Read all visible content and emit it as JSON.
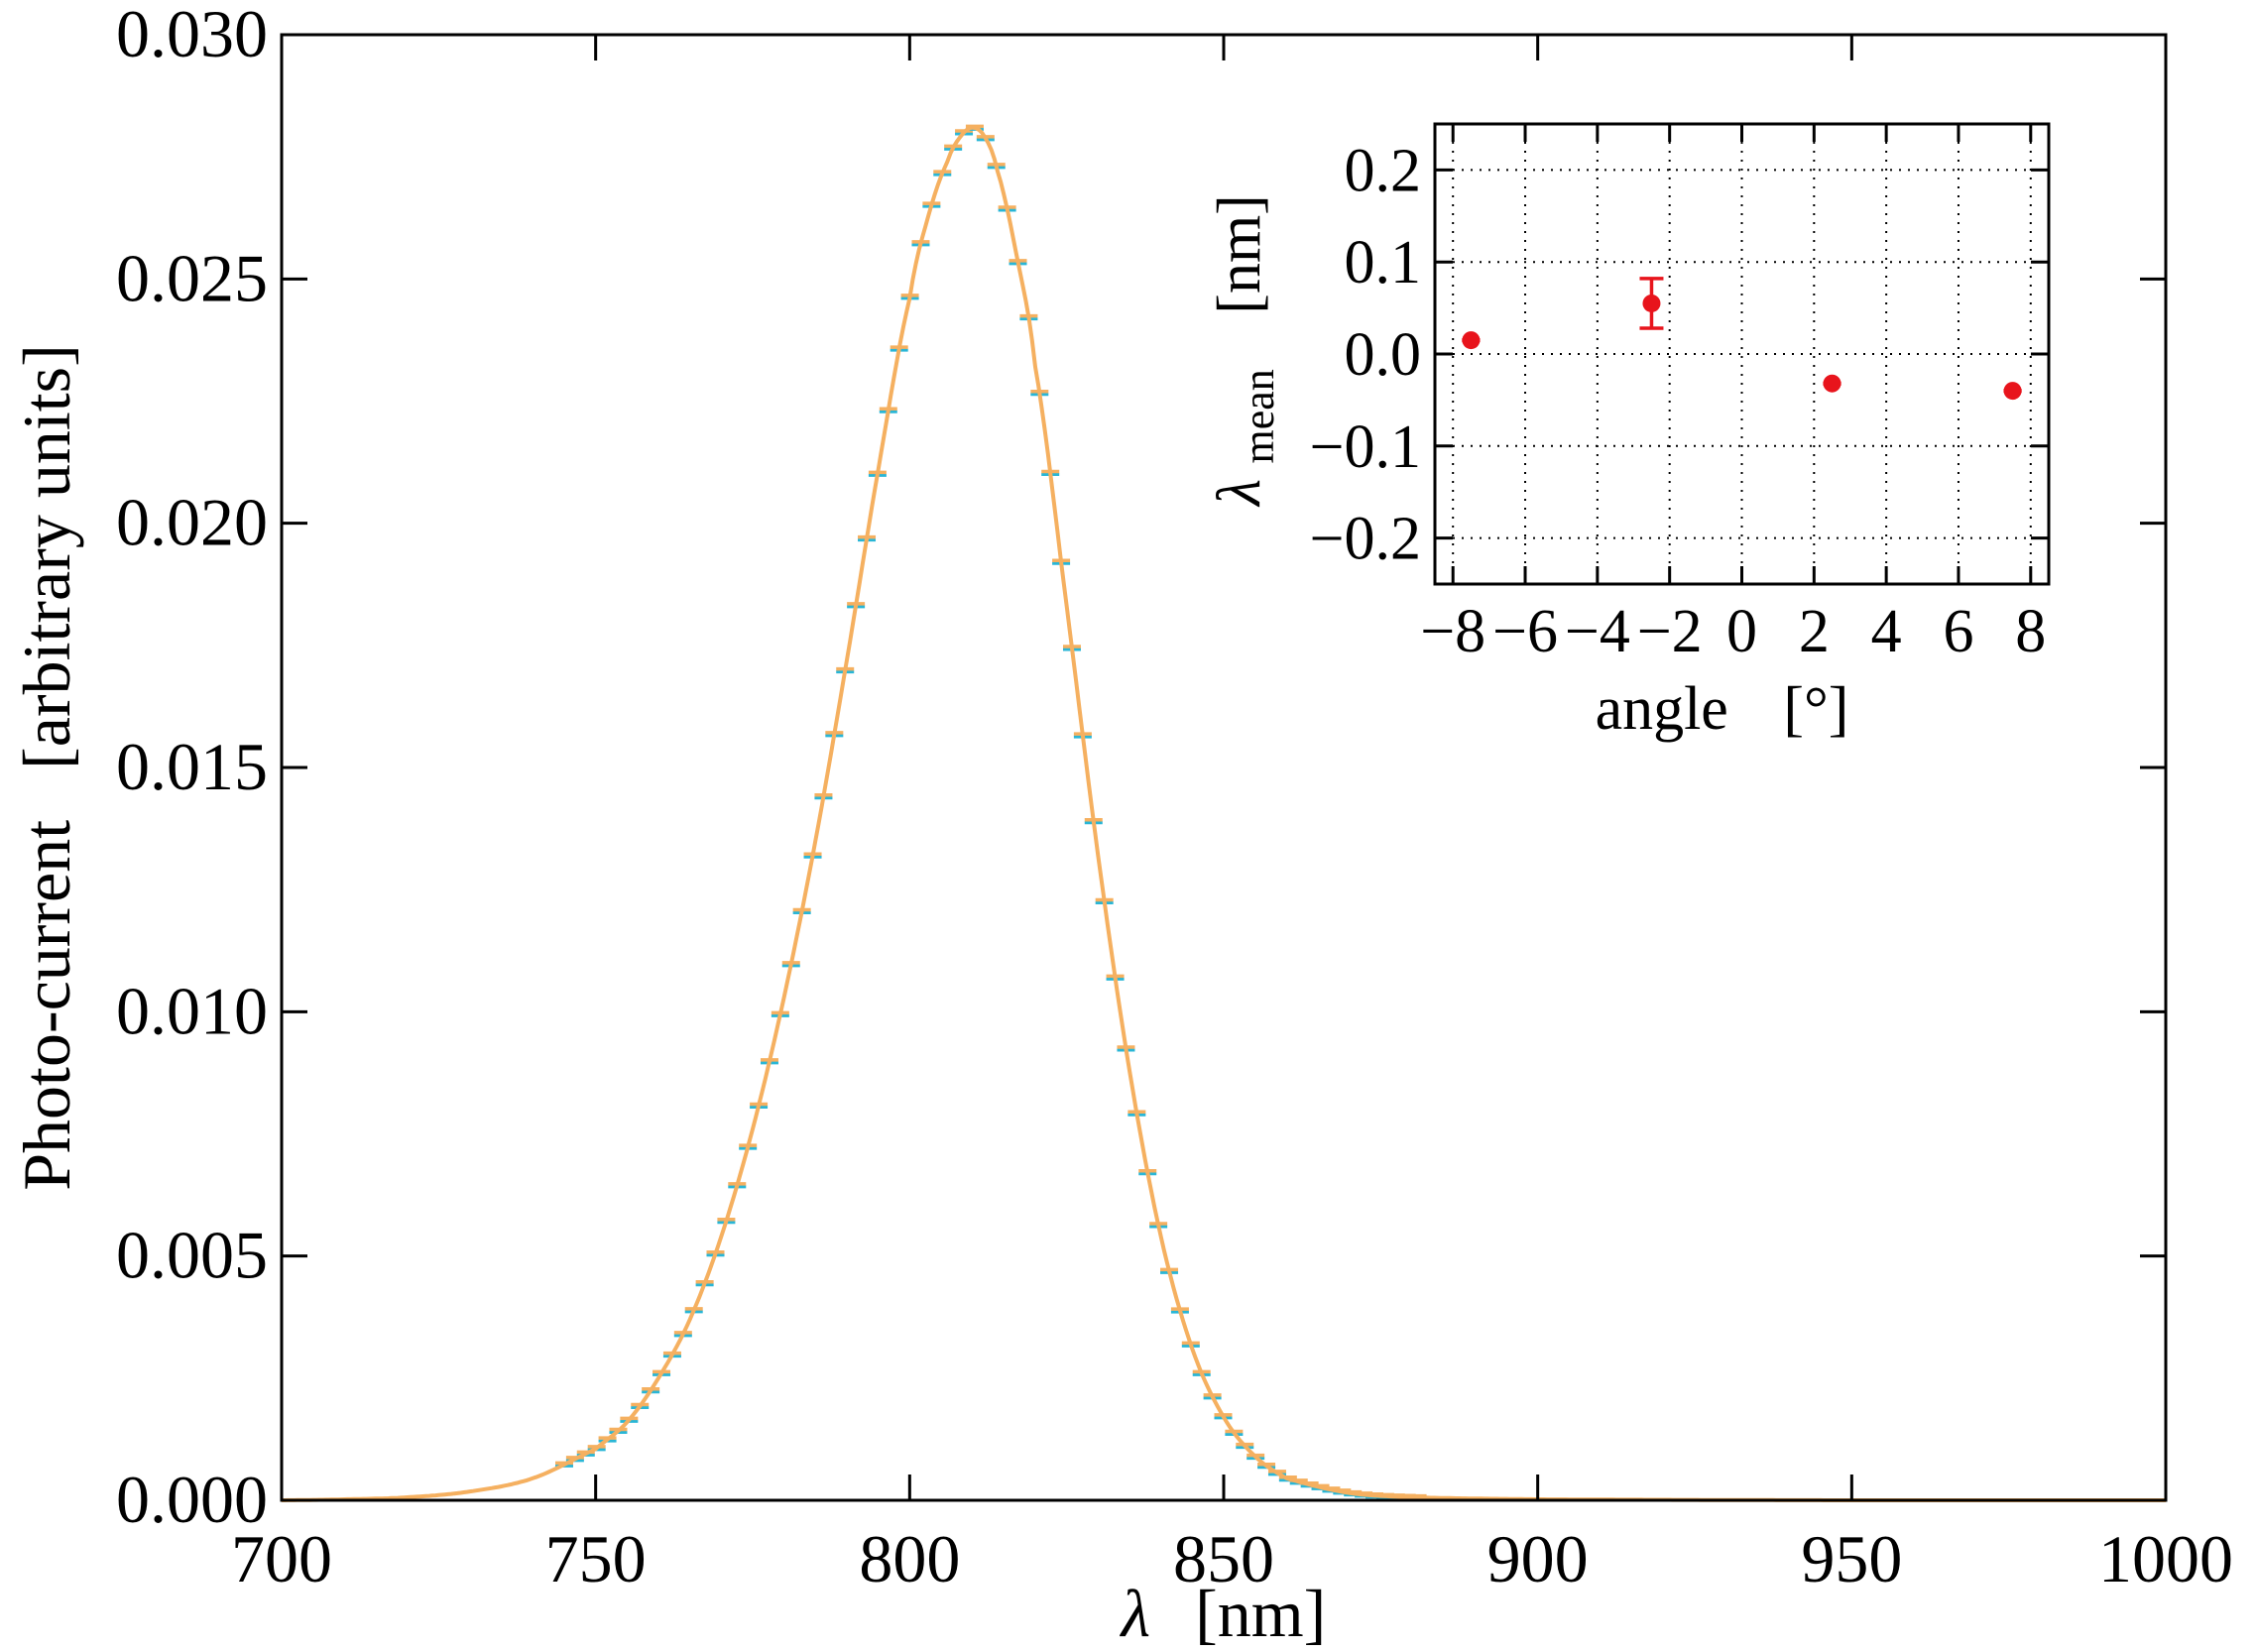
{
  "chart_data": [
    {
      "type": "line",
      "xlabel_symbol": "λ",
      "xlabel_unit": "[nm]",
      "ylabel": "Photo-current   [arbitrary units]",
      "xlim": [
        700,
        1000
      ],
      "ylim": [
        0.0,
        0.03
      ],
      "x_ticks": [
        "700",
        "750",
        "800",
        "850",
        "900",
        "950",
        "1000"
      ],
      "y_ticks": [
        "0.000",
        "0.005",
        "0.010",
        "0.015",
        "0.020",
        "0.025",
        "0.030"
      ],
      "grid": false,
      "series": [
        {
          "color": "#f5b060",
          "error_bar_color": "#29b6d6",
          "description_values": "smooth peaked spectrum with error-bar markers, sampled every ~1.7 nm",
          "x": [
            700,
            710,
            720,
            730,
            740,
            750,
            755,
            760,
            765,
            770,
            775,
            780,
            785,
            790,
            795,
            800,
            803,
            806,
            808,
            810,
            812,
            814,
            817,
            820,
            825,
            830,
            835,
            840,
            845,
            850,
            855,
            860,
            870,
            880,
            900,
            950,
            1000
          ],
          "y": [
            0.0,
            2e-05,
            6e-05,
            0.00018,
            0.00045,
            0.00105,
            0.0016,
            0.0025,
            0.0037,
            0.0054,
            0.0076,
            0.0103,
            0.0135,
            0.0172,
            0.0211,
            0.0246,
            0.0263,
            0.0274,
            0.0279,
            0.0281,
            0.0279,
            0.0272,
            0.0255,
            0.0232,
            0.0183,
            0.0132,
            0.0088,
            0.0054,
            0.0031,
            0.0017,
            0.0009,
            0.00045,
            0.00015,
            6e-05,
            2e-05,
            0.0,
            0.0
          ]
        }
      ]
    },
    {
      "type": "scatter",
      "xlabel": "angle",
      "xlabel_unit": "[°]",
      "ylabel_symbol": "λ",
      "ylabel_sub": "mean",
      "ylabel_unit": "[nm]",
      "xlim": [
        -8.5,
        8.5
      ],
      "ylim": [
        -0.25,
        0.25
      ],
      "x_ticks": [
        "−8",
        "−6",
        "−4",
        "−2",
        "0",
        "2",
        "4",
        "6",
        "8"
      ],
      "y_ticks": [
        "−0.2",
        "−0.1",
        "0.0",
        "0.1",
        "0.2"
      ],
      "grid": true,
      "series": [
        {
          "color": "#e8141c",
          "x": [
            -7.5,
            -2.5,
            2.5,
            7.5
          ],
          "y": [
            0.015,
            0.055,
            -0.032,
            -0.04
          ],
          "yerr": [
            0.004,
            0.027,
            0.003,
            0.003
          ],
          "xerr": [
            0.25,
            0.0,
            0.25,
            0.25
          ]
        }
      ]
    }
  ]
}
